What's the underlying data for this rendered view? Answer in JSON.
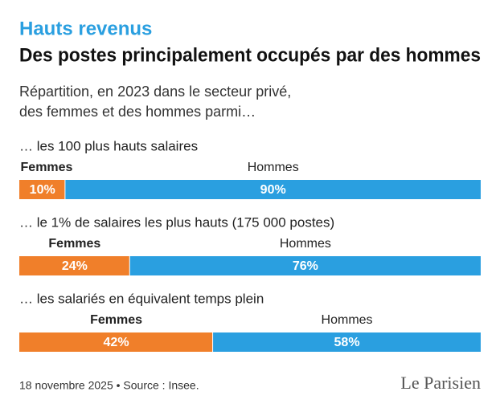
{
  "chart_data": {
    "type": "stacked-bar",
    "kicker": "Hauts revenus",
    "title": "Des postes principalement occupés par des hommes",
    "subtitle": [
      "Répartition, en 2023 dans le secteur privé,",
      "des femmes et des hommes parmi…"
    ],
    "categories": [
      "… les 100 plus hauts salaires",
      "… le 1% de salaires les plus hauts (175 000 postes)",
      "… les salariés en équivalent temps plein"
    ],
    "series": [
      {
        "name": "Femmes",
        "color": "#f07f2a",
        "values": [
          10,
          24,
          42
        ],
        "value_labels": [
          "10%",
          "24%",
          "42%"
        ]
      },
      {
        "name": "Hommes",
        "color": "#2a9fe0",
        "values": [
          90,
          76,
          58
        ],
        "value_labels": [
          "90%",
          "76%",
          "58%"
        ]
      }
    ],
    "xlim": [
      0,
      100
    ],
    "source": "18 novembre 2025 • Source : Insee.",
    "logo": "Le Parisien"
  }
}
